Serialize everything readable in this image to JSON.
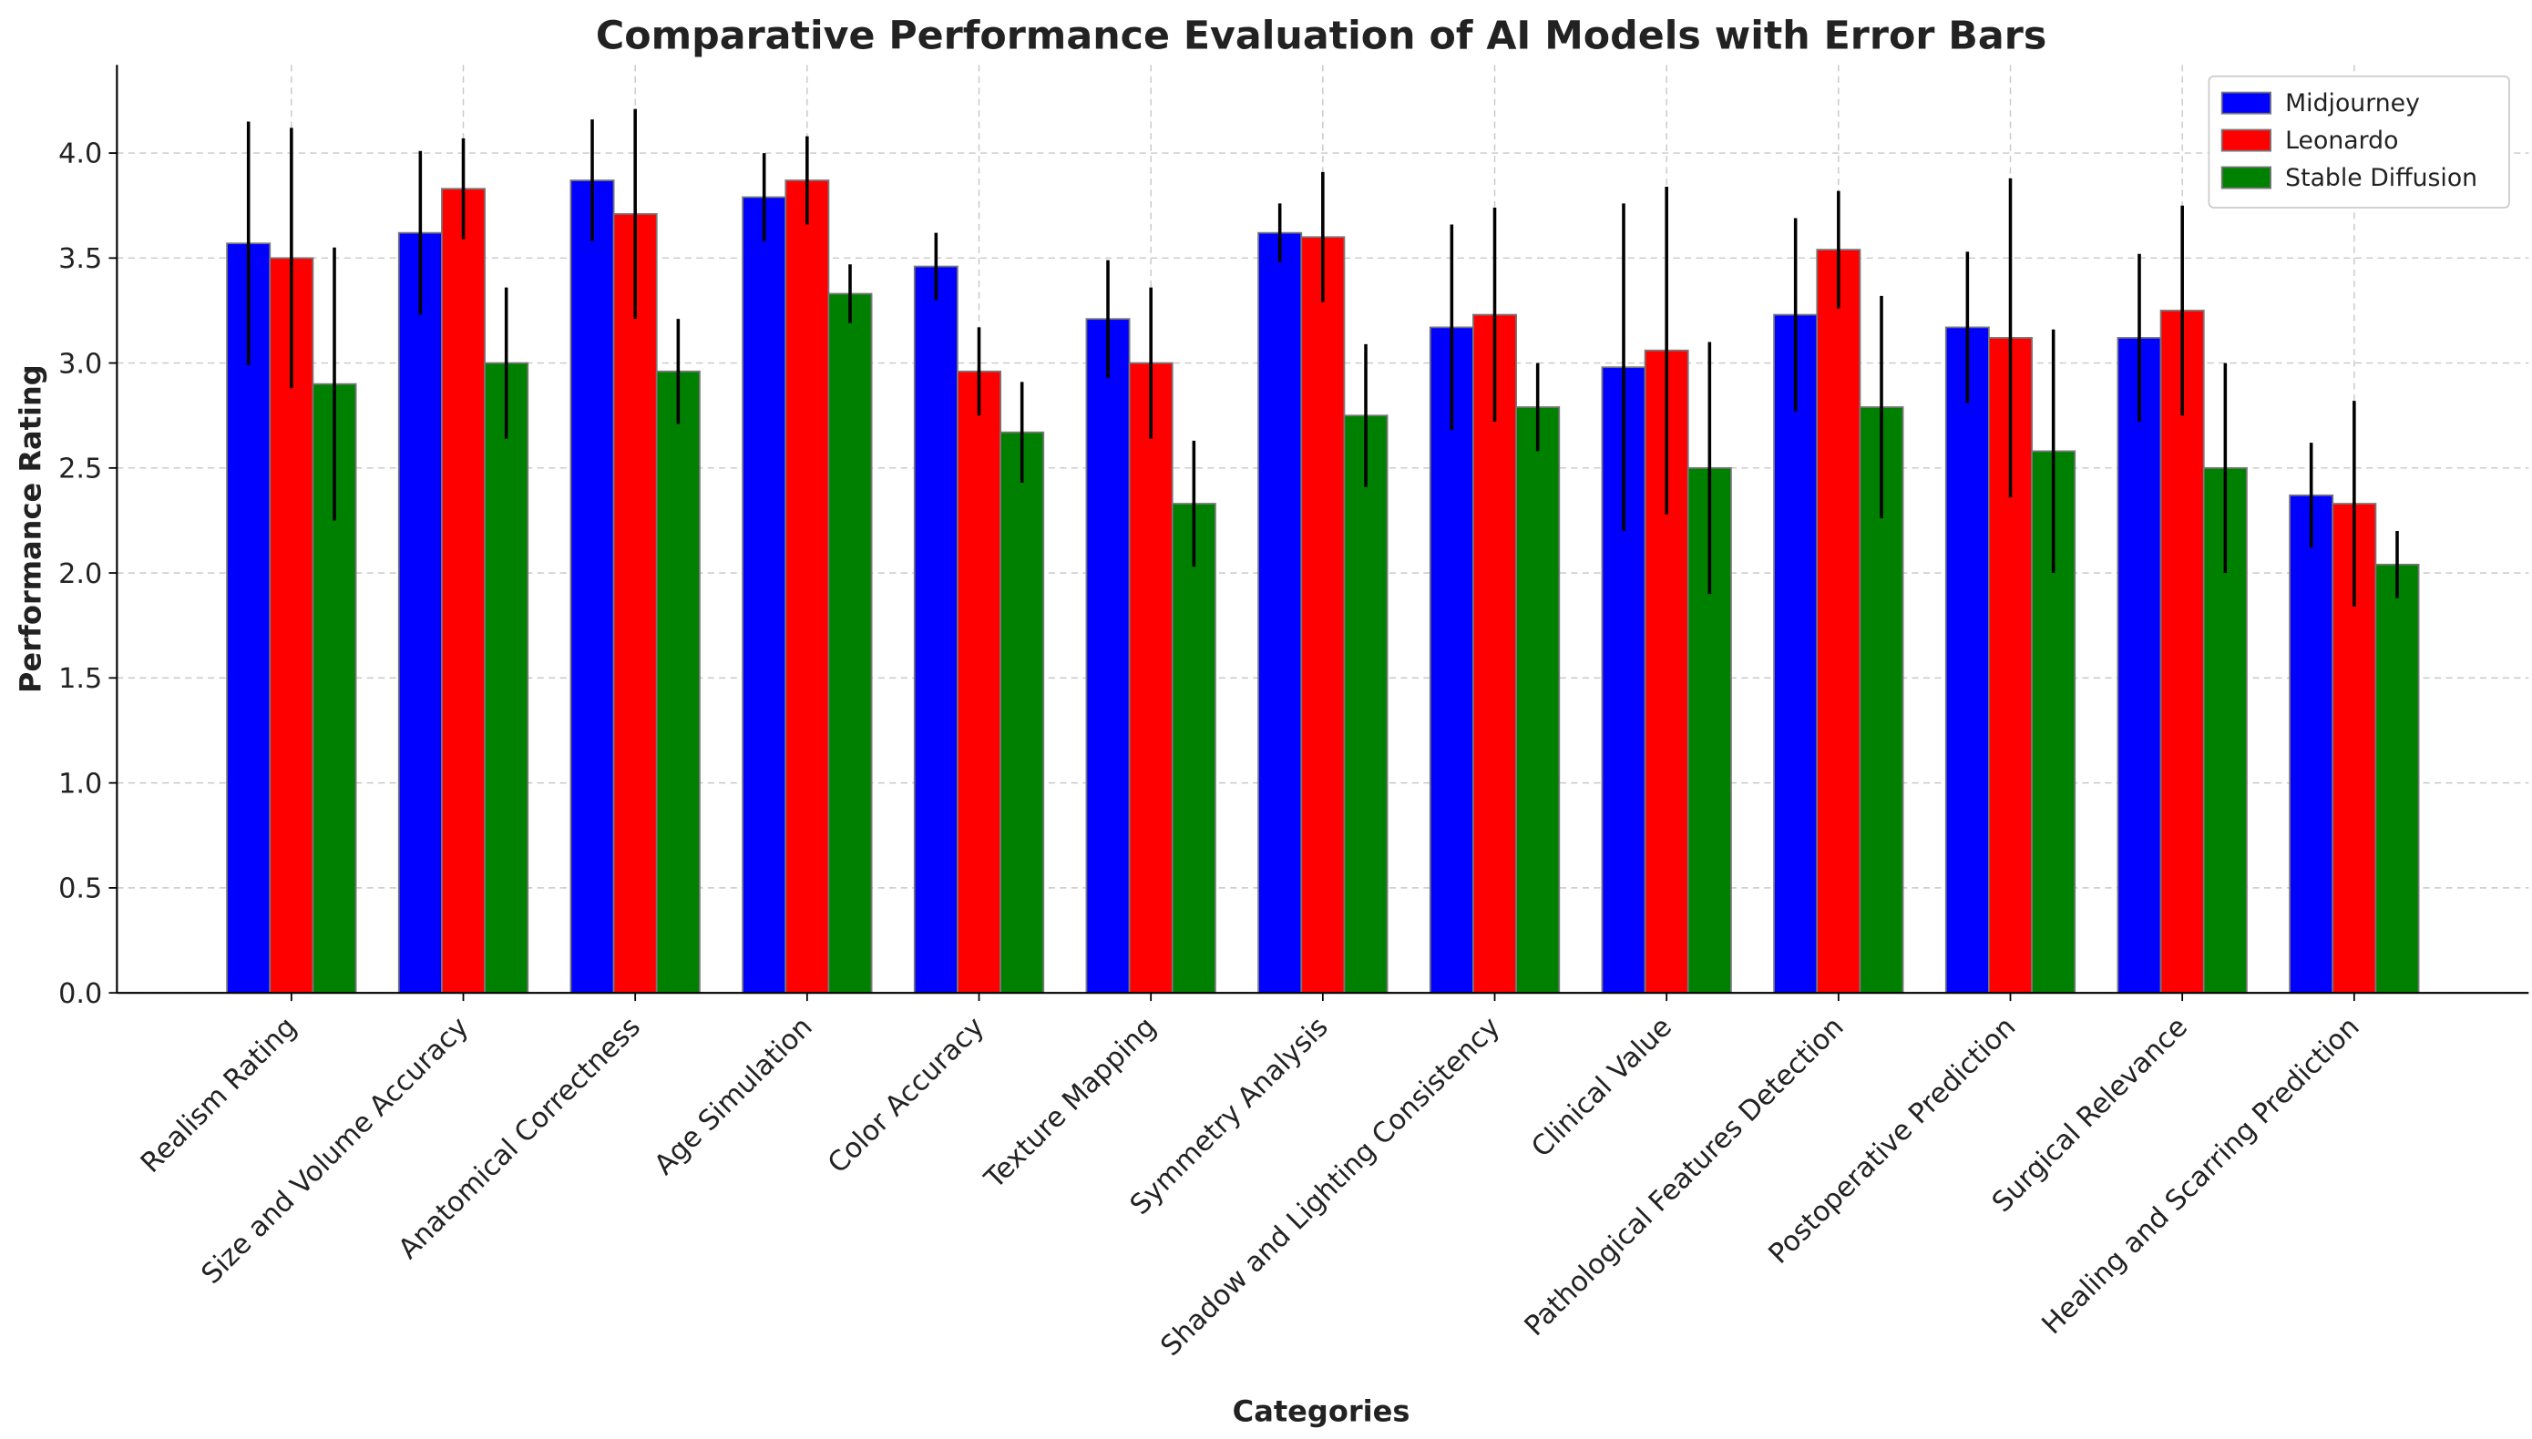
{
  "chart_data": {
    "type": "bar",
    "title": "Comparative Performance Evaluation of AI Models with Error Bars",
    "x_label": "Categories",
    "y_label": "Performance Rating",
    "categories": [
      "Realism Rating",
      "Size and Volume Accuracy",
      "Anatomical Correctness",
      "Age Simulation",
      "Color Accuracy",
      "Texture Mapping",
      "Symmetry Analysis",
      "Shadow and Lighting Consistency",
      "Clinical Value",
      "Pathological Features Detection",
      "Postoperative Prediction",
      "Surgical Relevance",
      "Healing and Scarring Prediction"
    ],
    "series": [
      {
        "name": "Midjourney",
        "color": "#0000ff",
        "values": [
          3.57,
          3.62,
          3.87,
          3.79,
          3.46,
          3.21,
          3.62,
          3.17,
          2.98,
          3.23,
          3.17,
          3.12,
          2.37
        ],
        "errors": [
          0.58,
          0.39,
          0.29,
          0.21,
          0.16,
          0.28,
          0.14,
          0.49,
          0.78,
          0.46,
          0.36,
          0.4,
          0.25
        ]
      },
      {
        "name": "Leonardo",
        "color": "#ff0000",
        "values": [
          3.5,
          3.83,
          3.71,
          3.87,
          2.96,
          3.0,
          3.6,
          3.23,
          3.06,
          3.54,
          3.12,
          3.25,
          2.33
        ],
        "errors": [
          0.62,
          0.24,
          0.5,
          0.21,
          0.21,
          0.36,
          0.31,
          0.51,
          0.78,
          0.28,
          0.76,
          0.5,
          0.49
        ]
      },
      {
        "name": "Stable Diffusion",
        "color": "#008000",
        "values": [
          2.9,
          3.0,
          2.96,
          3.33,
          2.67,
          2.33,
          2.75,
          2.79,
          2.5,
          2.79,
          2.58,
          2.5,
          2.04
        ],
        "errors": [
          0.65,
          0.36,
          0.25,
          0.14,
          0.24,
          0.3,
          0.34,
          0.21,
          0.6,
          0.53,
          0.58,
          0.5,
          0.16
        ]
      }
    ],
    "ylim": [
      0,
      4.42
    ],
    "yticks": [
      {
        "value": 0,
        "label": "0.0"
      },
      {
        "value": 0.5,
        "label": "0.5"
      },
      {
        "value": 1,
        "label": "1.0"
      },
      {
        "value": 1.5,
        "label": "1.5"
      },
      {
        "value": 2,
        "label": "2.0"
      },
      {
        "value": 2.5,
        "label": "2.5"
      },
      {
        "value": 3,
        "label": "3.0"
      },
      {
        "value": 3.5,
        "label": "3.5"
      },
      {
        "value": 4,
        "label": "4.0"
      }
    ],
    "grid": true,
    "legend": "upper right"
  }
}
